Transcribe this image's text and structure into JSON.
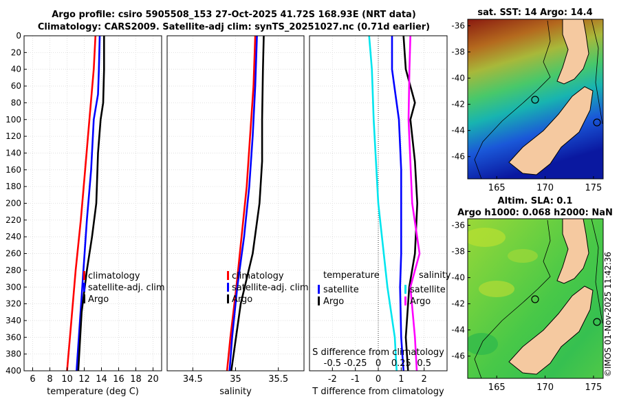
{
  "title": {
    "line1": "Argo profile: csiro 5905508_153 27-Oct-2025 41.72S 168.93E (NRT data)",
    "line2": "Climatology: CARS2009. Satellite-adj clim: synTS_20251027.nc (0.71d earlier)"
  },
  "colors": {
    "climatology": "#ff0000",
    "satellite": "#0000ff",
    "argo": "#000000",
    "t_diff_sat": "#0000ff",
    "s_diff_sat": "#00e5ee",
    "s_diff_argo": "#ff00ff"
  },
  "chart_data": [
    {
      "id": "temperature",
      "type": "line",
      "xlabel": "temperature (deg C)",
      "ylabel": "",
      "xlim": [
        5,
        21
      ],
      "ylim": [
        400,
        0
      ],
      "xticks": [
        6,
        8,
        10,
        12,
        14,
        16,
        18,
        20
      ],
      "yticks": [
        0,
        20,
        40,
        60,
        80,
        100,
        120,
        140,
        160,
        180,
        200,
        220,
        240,
        260,
        280,
        300,
        320,
        340,
        360,
        380,
        400
      ],
      "legend": [
        "climatology",
        "satellite-adj. clim",
        "Argo"
      ],
      "series": [
        {
          "name": "climatology",
          "color": "#ff0000",
          "depth": [
            0,
            40,
            100,
            160,
            220,
            280,
            340,
            400
          ],
          "values": [
            13.3,
            13.1,
            12.6,
            12.1,
            11.6,
            11.0,
            10.5,
            10.0
          ]
        },
        {
          "name": "satellite-adj. clim",
          "color": "#0000ff",
          "depth": [
            0,
            40,
            70,
            100,
            160,
            220,
            280,
            340,
            400
          ],
          "values": [
            13.8,
            13.7,
            13.6,
            13.1,
            12.8,
            12.3,
            11.9,
            11.5,
            11.1
          ]
        },
        {
          "name": "Argo",
          "color": "#000000",
          "depth": [
            0,
            40,
            80,
            100,
            140,
            200,
            240,
            280,
            330,
            400
          ],
          "values": [
            14.3,
            14.3,
            14.2,
            13.9,
            13.6,
            13.4,
            12.9,
            12.3,
            11.7,
            11.3
          ]
        }
      ]
    },
    {
      "id": "salinity",
      "type": "line",
      "xlabel": "salinity",
      "ylabel": "",
      "xlim": [
        34.2,
        35.8
      ],
      "ylim": [
        400,
        0
      ],
      "xticks": [
        34.5,
        35,
        35.5
      ],
      "xticklabels": [
        "34.5",
        "35",
        "35.5"
      ],
      "legend": [
        "climatology",
        "satellite-adj. clim",
        "Argo"
      ],
      "series": [
        {
          "name": "climatology",
          "color": "#ff0000",
          "depth": [
            0,
            60,
            120,
            180,
            240,
            300,
            360,
            400
          ],
          "values": [
            35.23,
            35.21,
            35.17,
            35.13,
            35.07,
            35.01,
            34.94,
            34.9
          ]
        },
        {
          "name": "satellite-adj. clim",
          "color": "#0000ff",
          "depth": [
            0,
            60,
            120,
            180,
            240,
            300,
            360,
            400
          ],
          "values": [
            35.25,
            35.23,
            35.2,
            35.16,
            35.1,
            35.02,
            34.96,
            34.93
          ]
        },
        {
          "name": "Argo",
          "color": "#000000",
          "depth": [
            0,
            40,
            100,
            150,
            200,
            260,
            320,
            400
          ],
          "values": [
            35.33,
            35.32,
            35.31,
            35.31,
            35.28,
            35.2,
            35.06,
            34.95
          ]
        }
      ]
    },
    {
      "id": "difference",
      "type": "line",
      "xlabel": "T difference from climatology",
      "x2label": "S difference from climatology",
      "xlim": [
        -3,
        3
      ],
      "ylim": [
        400,
        0
      ],
      "xticks": [
        -2,
        -1,
        0,
        1,
        2
      ],
      "xticklabels": [
        "-2",
        "-1",
        "0",
        "1",
        "2"
      ],
      "x2ticks": [
        -0.5,
        -0.25,
        0,
        0.25,
        0.5
      ],
      "x2ticklabels": [
        "-0.5",
        "-0.25",
        "0",
        "0.25",
        "0.5"
      ],
      "legend_temperature_title": "temperature",
      "legend_salinity_title": "salinity",
      "legend_temperature": [
        "satellite",
        "Argo"
      ],
      "legend_salinity": [
        "satellite",
        "Argo"
      ],
      "series": [
        {
          "name": "T satellite",
          "color": "#0000ff",
          "depth": [
            0,
            40,
            60,
            100,
            160,
            200,
            260,
            300,
            360,
            400
          ],
          "values": [
            0.6,
            0.6,
            0.7,
            0.9,
            1.0,
            1.0,
            1.0,
            0.95,
            1.0,
            1.1
          ]
        },
        {
          "name": "T Argo",
          "color": "#000000",
          "depth": [
            0,
            40,
            80,
            100,
            150,
            200,
            260,
            300,
            360,
            400
          ],
          "values": [
            1.1,
            1.2,
            1.6,
            1.4,
            1.6,
            1.7,
            1.6,
            1.35,
            1.2,
            1.3
          ]
        },
        {
          "name": "S satellite",
          "color": "#00e5ee",
          "depth": [
            0,
            40,
            100,
            200,
            300,
            360,
            400
          ],
          "values": [
            -0.1,
            -0.07,
            -0.05,
            0.0,
            0.1,
            0.18,
            0.2
          ]
        },
        {
          "name": "S Argo",
          "color": "#ff00ff",
          "depth": [
            0,
            40,
            100,
            200,
            260,
            300,
            360,
            400
          ],
          "values": [
            0.35,
            0.34,
            0.33,
            0.37,
            0.45,
            0.35,
            0.4,
            0.42
          ]
        }
      ]
    },
    {
      "id": "map-sst",
      "type": "heatmap",
      "title": "sat. SST: 14 Argo: 14.4",
      "xticks": [
        165,
        170,
        175
      ],
      "yticks": [
        -36,
        -38,
        -40,
        -42,
        -44,
        -46
      ],
      "xlim": [
        162,
        176
      ],
      "ylim": [
        -47.7,
        -35.5
      ],
      "profile_location": [
        168.93,
        -41.72
      ]
    },
    {
      "id": "map-sla",
      "type": "heatmap",
      "title_line1": "Altim. SLA: 0.1",
      "title_line2": "Argo h1000: 0.068 h2000: NaN",
      "xticks": [
        165,
        170,
        175
      ],
      "yticks": [
        -36,
        -38,
        -40,
        -42,
        -44,
        -46
      ],
      "xlim": [
        162,
        176
      ],
      "ylim": [
        -47.7,
        -35.5
      ],
      "profile_location": [
        168.93,
        -41.72
      ]
    }
  ],
  "credit": "©IMOS 01-Nov-2025 11:42:36"
}
